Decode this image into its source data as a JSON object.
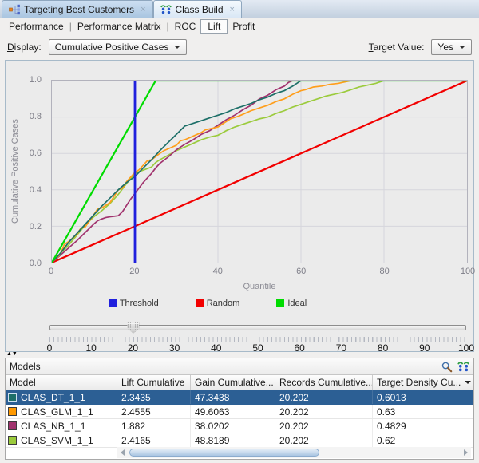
{
  "window": {
    "tabs": [
      {
        "icon": "workflow-icon",
        "label": "Targeting Best Customers",
        "close": "x",
        "active": false
      },
      {
        "icon": "class-build-icon",
        "label": "Class Build",
        "close": "x",
        "active": true
      }
    ]
  },
  "view_tabs": {
    "items": [
      "Performance",
      "Performance Matrix",
      "ROC",
      "Lift",
      "Profit"
    ],
    "selected": "Lift"
  },
  "controls": {
    "display_mnemonic": "D",
    "display_rest": "isplay:",
    "display_value": "Cumulative Positive Cases",
    "target_mnemonic": "T",
    "target_rest": "arget Value:",
    "target_value": "Yes"
  },
  "chart_data": {
    "type": "line",
    "title": "",
    "xlabel": "Quantile",
    "ylabel": "Cumulative Positive Cases",
    "xlim": [
      0,
      100
    ],
    "ylim": [
      0,
      1
    ],
    "x_ticks": [
      0,
      20,
      40,
      60,
      80,
      100
    ],
    "y_ticks": [
      0,
      0.2,
      0.4,
      0.6,
      0.8,
      1
    ],
    "grid": true,
    "legend_position": "bottom",
    "legend": [
      {
        "label": "Threshold",
        "color": "#2020dd"
      },
      {
        "label": "Random",
        "color": "#f20000"
      },
      {
        "label": "Ideal",
        "color": "#00dc00"
      }
    ],
    "series": [
      {
        "name": "Random",
        "role": "reference",
        "color": "#f20000",
        "points": [
          [
            0,
            0
          ],
          [
            100,
            1
          ]
        ]
      },
      {
        "name": "CLAS_SVM_1_1",
        "role": "model",
        "color": "#9bcb3c",
        "points": [
          [
            0,
            0
          ],
          [
            2,
            0.05
          ],
          [
            4,
            0.095
          ],
          [
            6,
            0.15
          ],
          [
            8,
            0.205
          ],
          [
            10,
            0.25
          ],
          [
            12,
            0.285
          ],
          [
            14,
            0.325
          ],
          [
            16,
            0.375
          ],
          [
            18,
            0.435
          ],
          [
            20,
            0.488
          ],
          [
            21,
            0.5
          ],
          [
            22,
            0.508
          ],
          [
            24,
            0.525
          ],
          [
            25,
            0.55
          ],
          [
            26,
            0.565
          ],
          [
            28,
            0.59
          ],
          [
            30,
            0.615
          ],
          [
            32,
            0.635
          ],
          [
            34,
            0.655
          ],
          [
            36,
            0.675
          ],
          [
            38,
            0.69
          ],
          [
            40,
            0.7
          ],
          [
            42,
            0.725
          ],
          [
            44,
            0.745
          ],
          [
            46,
            0.76
          ],
          [
            48,
            0.775
          ],
          [
            50,
            0.79
          ],
          [
            52,
            0.8
          ],
          [
            54,
            0.82
          ],
          [
            56,
            0.835
          ],
          [
            58,
            0.855
          ],
          [
            60,
            0.87
          ],
          [
            62,
            0.885
          ],
          [
            64,
            0.9
          ],
          [
            66,
            0.915
          ],
          [
            68,
            0.925
          ],
          [
            70,
            0.935
          ],
          [
            72,
            0.95
          ],
          [
            74,
            0.965
          ],
          [
            76,
            0.975
          ],
          [
            78,
            0.985
          ],
          [
            80,
            1
          ],
          [
            100,
            1
          ]
        ]
      },
      {
        "name": "CLAS_NB_1_1",
        "role": "model",
        "color": "#a1336e",
        "points": [
          [
            0,
            0
          ],
          [
            2,
            0.04
          ],
          [
            4,
            0.08
          ],
          [
            6,
            0.12
          ],
          [
            8,
            0.165
          ],
          [
            10,
            0.21
          ],
          [
            11,
            0.23
          ],
          [
            12,
            0.24
          ],
          [
            13,
            0.248
          ],
          [
            14,
            0.252
          ],
          [
            15,
            0.255
          ],
          [
            16,
            0.258
          ],
          [
            17,
            0.28
          ],
          [
            18,
            0.315
          ],
          [
            19,
            0.35
          ],
          [
            20,
            0.38
          ],
          [
            21,
            0.41
          ],
          [
            22,
            0.44
          ],
          [
            23,
            0.465
          ],
          [
            24,
            0.49
          ],
          [
            25,
            0.52
          ],
          [
            26,
            0.545
          ],
          [
            28,
            0.58
          ],
          [
            30,
            0.62
          ],
          [
            32,
            0.65
          ],
          [
            34,
            0.675
          ],
          [
            36,
            0.705
          ],
          [
            38,
            0.725
          ],
          [
            40,
            0.755
          ],
          [
            42,
            0.785
          ],
          [
            44,
            0.81
          ],
          [
            46,
            0.84
          ],
          [
            48,
            0.865
          ],
          [
            50,
            0.9
          ],
          [
            52,
            0.92
          ],
          [
            54,
            0.95
          ],
          [
            56,
            0.97
          ],
          [
            57,
            0.99
          ],
          [
            58,
            1
          ],
          [
            100,
            1
          ]
        ]
      },
      {
        "name": "CLAS_GLM_1_1",
        "role": "model",
        "color": "#ff9e1b",
        "points": [
          [
            0,
            0
          ],
          [
            2,
            0.045
          ],
          [
            3,
            0.1
          ],
          [
            4,
            0.115
          ],
          [
            6,
            0.155
          ],
          [
            7,
            0.19
          ],
          [
            8,
            0.195
          ],
          [
            10,
            0.26
          ],
          [
            11,
            0.295
          ],
          [
            12,
            0.3
          ],
          [
            14,
            0.33
          ],
          [
            15,
            0.365
          ],
          [
            16,
            0.4
          ],
          [
            17,
            0.41
          ],
          [
            18,
            0.445
          ],
          [
            20,
            0.496
          ],
          [
            21,
            0.51
          ],
          [
            22,
            0.535
          ],
          [
            23,
            0.56
          ],
          [
            24,
            0.565
          ],
          [
            26,
            0.6
          ],
          [
            27,
            0.615
          ],
          [
            28,
            0.625
          ],
          [
            30,
            0.645
          ],
          [
            31,
            0.67
          ],
          [
            32,
            0.675
          ],
          [
            34,
            0.695
          ],
          [
            36,
            0.715
          ],
          [
            37,
            0.73
          ],
          [
            39,
            0.74
          ],
          [
            40,
            0.745
          ],
          [
            42,
            0.775
          ],
          [
            43,
            0.79
          ],
          [
            45,
            0.805
          ],
          [
            46,
            0.815
          ],
          [
            48,
            0.835
          ],
          [
            50,
            0.85
          ],
          [
            52,
            0.865
          ],
          [
            54,
            0.885
          ],
          [
            56,
            0.9
          ],
          [
            58,
            0.925
          ],
          [
            60,
            0.945
          ],
          [
            61,
            0.95
          ],
          [
            63,
            0.965
          ],
          [
            65,
            0.97
          ],
          [
            67,
            0.98
          ],
          [
            69,
            0.985
          ],
          [
            71,
            0.995
          ],
          [
            72,
            1
          ],
          [
            100,
            1
          ]
        ]
      },
      {
        "name": "CLAS_DT_1_1",
        "role": "model",
        "color": "#1d6f68",
        "points": [
          [
            0,
            0
          ],
          [
            2,
            0.05
          ],
          [
            4,
            0.11
          ],
          [
            6,
            0.16
          ],
          [
            8,
            0.21
          ],
          [
            10,
            0.26
          ],
          [
            12,
            0.31
          ],
          [
            14,
            0.355
          ],
          [
            16,
            0.4
          ],
          [
            18,
            0.44
          ],
          [
            20,
            0.473
          ],
          [
            22,
            0.52
          ],
          [
            24,
            0.565
          ],
          [
            26,
            0.615
          ],
          [
            28,
            0.66
          ],
          [
            30,
            0.705
          ],
          [
            32,
            0.75
          ],
          [
            34,
            0.765
          ],
          [
            36,
            0.78
          ],
          [
            38,
            0.795
          ],
          [
            40,
            0.81
          ],
          [
            42,
            0.825
          ],
          [
            44,
            0.845
          ],
          [
            46,
            0.86
          ],
          [
            48,
            0.875
          ],
          [
            50,
            0.895
          ],
          [
            52,
            0.91
          ],
          [
            54,
            0.93
          ],
          [
            56,
            0.945
          ],
          [
            58,
            0.97
          ],
          [
            59,
            0.985
          ],
          [
            60,
            1
          ],
          [
            100,
            1
          ]
        ]
      },
      {
        "name": "Ideal",
        "role": "reference",
        "color": "#00dc00",
        "points": [
          [
            0,
            0
          ],
          [
            25,
            1
          ],
          [
            100,
            1
          ]
        ]
      },
      {
        "name": "Threshold",
        "role": "threshold",
        "color": "#2020dd",
        "points": [
          [
            20,
            0
          ],
          [
            20,
            1
          ]
        ]
      }
    ]
  },
  "threshold_slider": {
    "value": 20,
    "min": 0,
    "max": 100,
    "labels": [
      "0",
      "10",
      "20",
      "30",
      "40",
      "50",
      "60",
      "70",
      "80",
      "90",
      "100"
    ]
  },
  "models": {
    "title": "Models",
    "columns": [
      "Model",
      "Lift Cumulative",
      "Gain Cumulative...",
      "Records Cumulative...",
      "Target Density Cu..."
    ],
    "rows": [
      {
        "swatch": "#1d6f68",
        "model": "CLAS_DT_1_1",
        "values": [
          "2.3435",
          "47.3438",
          "20.202",
          "0.6013"
        ],
        "selected": true
      },
      {
        "swatch": "#ff9900",
        "model": "CLAS_GLM_1_1",
        "values": [
          "2.4555",
          "49.6063",
          "20.202",
          "0.63"
        ],
        "selected": false
      },
      {
        "swatch": "#a1336e",
        "model": "CLAS_NB_1_1",
        "values": [
          "1.882",
          "38.0202",
          "20.202",
          "0.4829"
        ],
        "selected": false
      },
      {
        "swatch": "#9bcb3c",
        "model": "CLAS_SVM_1_1",
        "values": [
          "2.4165",
          "48.8189",
          "20.202",
          "0.62"
        ],
        "selected": false
      }
    ]
  }
}
